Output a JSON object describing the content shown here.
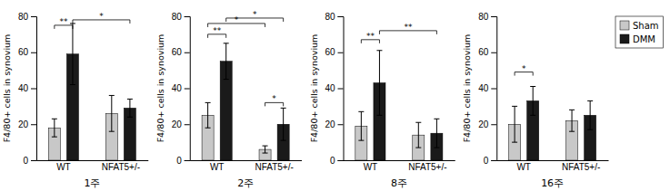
{
  "chart_data": [
    {
      "type": "bar",
      "xlabel": "1주",
      "ylabel": "F4/80+ cells in synovium",
      "categories": [
        "WT",
        "NFAT5+/-"
      ],
      "series": [
        {
          "name": "Sham",
          "color": "#c8c8c8",
          "values": [
            18,
            26
          ],
          "errors": [
            5,
            10
          ]
        },
        {
          "name": "DMM",
          "color": "#1a1a1a",
          "values": [
            59,
            29
          ],
          "errors": [
            17,
            5
          ]
        }
      ],
      "annotations": [
        {
          "label": "**",
          "from": [
            "WT",
            "Sham"
          ],
          "to": [
            "WT",
            "DMM"
          ],
          "y": 73
        },
        {
          "label": "*",
          "from": [
            "WT",
            "DMM"
          ],
          "to": [
            "NFAT5+/-",
            "DMM"
          ],
          "y": 76
        }
      ],
      "ylim": [
        0,
        80
      ],
      "yticks": [
        0,
        20,
        40,
        60,
        80
      ],
      "grid": false
    },
    {
      "type": "bar",
      "xlabel": "2주",
      "ylabel": "F4/80+ cells in synovium",
      "categories": [
        "WT",
        "NFAT5+/-"
      ],
      "series": [
        {
          "name": "Sham",
          "color": "#c8c8c8",
          "values": [
            25,
            6
          ],
          "errors": [
            7,
            2
          ]
        },
        {
          "name": "DMM",
          "color": "#1a1a1a",
          "values": [
            55,
            20
          ],
          "errors": [
            10,
            9
          ]
        }
      ],
      "annotations": [
        {
          "label": "**",
          "from": [
            "WT",
            "Sham"
          ],
          "to": [
            "WT",
            "DMM"
          ],
          "y": 68
        },
        {
          "label": "*",
          "from": [
            "WT",
            "Sham"
          ],
          "to": [
            "NFAT5+/-",
            "Sham"
          ],
          "y": 74
        },
        {
          "label": "*",
          "from": [
            "WT",
            "DMM"
          ],
          "to": [
            "NFAT5+/-",
            "DMM"
          ],
          "y": 77
        },
        {
          "label": "*",
          "from": [
            "NFAT5+/-",
            "Sham"
          ],
          "to": [
            "NFAT5+/-",
            "DMM"
          ],
          "y": 30
        }
      ],
      "ylim": [
        0,
        80
      ],
      "yticks": [
        0,
        20,
        40,
        60,
        80
      ],
      "grid": false
    },
    {
      "type": "bar",
      "xlabel": "8주",
      "ylabel": "F4/80+ cells in synovium",
      "categories": [
        "WT",
        "NFAT5+/-"
      ],
      "series": [
        {
          "name": "Sham",
          "color": "#c8c8c8",
          "values": [
            19,
            14
          ],
          "errors": [
            8,
            7
          ]
        },
        {
          "name": "DMM",
          "color": "#1a1a1a",
          "values": [
            43,
            15
          ],
          "errors": [
            18,
            8
          ]
        }
      ],
      "annotations": [
        {
          "label": "**",
          "from": [
            "WT",
            "Sham"
          ],
          "to": [
            "WT",
            "DMM"
          ],
          "y": 65
        },
        {
          "label": "**",
          "from": [
            "WT",
            "DMM"
          ],
          "to": [
            "NFAT5+/-",
            "DMM"
          ],
          "y": 70
        }
      ],
      "ylim": [
        0,
        80
      ],
      "yticks": [
        0,
        20,
        40,
        60,
        80
      ],
      "grid": false
    },
    {
      "type": "bar",
      "xlabel": "16주",
      "ylabel": "F4/80+ cells in synovium",
      "categories": [
        "WT",
        "NFAT5+/-"
      ],
      "series": [
        {
          "name": "Sham",
          "color": "#c8c8c8",
          "values": [
            20,
            22
          ],
          "errors": [
            10,
            6
          ]
        },
        {
          "name": "DMM",
          "color": "#1a1a1a",
          "values": [
            33,
            25
          ],
          "errors": [
            8,
            8
          ]
        }
      ],
      "annotations": [
        {
          "label": "*",
          "from": [
            "WT",
            "Sham"
          ],
          "to": [
            "WT",
            "DMM"
          ],
          "y": 47
        }
      ],
      "ylim": [
        0,
        80
      ],
      "yticks": [
        0,
        20,
        40,
        60,
        80
      ],
      "grid": false,
      "legend": "right"
    }
  ]
}
